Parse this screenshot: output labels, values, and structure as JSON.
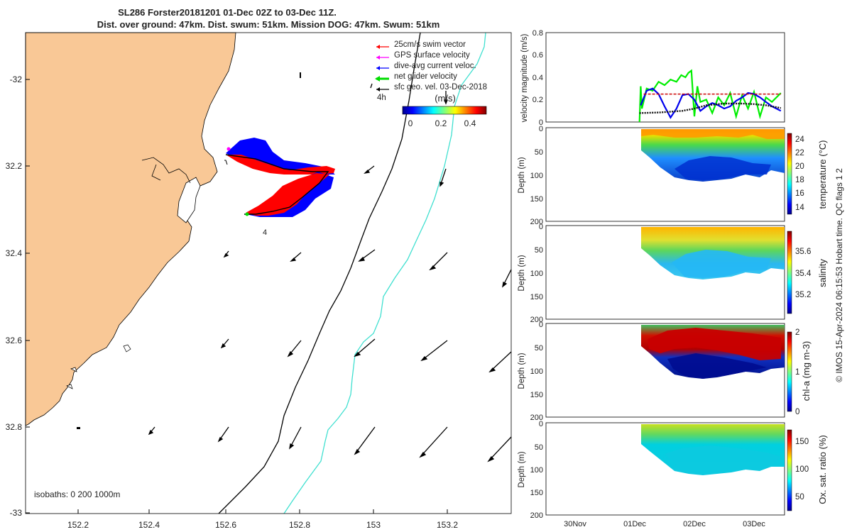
{
  "title": {
    "line1": "SL286 Forster20181201 01-Dec 02Z to 03-Dec 11Z.",
    "line2": "Dist. over ground: 47km. Dist. swum: 51km. Mission DOG: 47km. Swum: 51km"
  },
  "map": {
    "lon_ticks": [
      "152.2",
      "152.4",
      "152.6",
      "152.8",
      "153",
      "153.2"
    ],
    "lat_ticks": [
      "-32",
      "32.2",
      "32.4",
      "32.6",
      "32.8",
      "-33"
    ],
    "legend": [
      {
        "label": "25cm/s swim vector",
        "color": "#ff0000"
      },
      {
        "label": "GPS surface velocity",
        "color": "#ff00ff"
      },
      {
        "label": "dive-avg current veloc.",
        "color": "#0000ff"
      },
      {
        "label": "net glider velocity",
        "color": "#00dd00"
      },
      {
        "label": "sfc geo. vel. 03-Dec-2018",
        "color": "#000000"
      }
    ],
    "label_4h": "4h",
    "colorbar_unit": "(m/s)",
    "colorbar_ticks": [
      "0",
      "0.2",
      "0.4"
    ],
    "isobath_label": "isobaths: 0   200  1000m",
    "track_label": "4",
    "land_color": "#f9c896",
    "isobath_200_color": "#000000",
    "isobath_1000_color": "#40e0d0"
  },
  "chart_data": [
    {
      "type": "line",
      "ylabel": "velocity magnitude (m/s)",
      "ylim": [
        0,
        0.8
      ],
      "yticks": [
        "0",
        "0.2",
        "0.4",
        "0.6",
        "0.8"
      ],
      "x_ticks": [
        "30Nov",
        "01Dec",
        "02Dec",
        "03Dec"
      ],
      "series": [
        {
          "color": "#00ee00",
          "x": [
            1.08,
            1.1,
            1.12,
            1.2,
            1.3,
            1.4,
            1.5,
            1.6,
            1.7,
            1.78,
            1.85,
            1.9,
            1.95,
            2.0,
            2.05,
            2.1,
            2.2,
            2.3,
            2.4,
            2.5,
            2.6,
            2.7,
            2.8,
            2.9,
            3.0,
            3.1,
            3.2,
            3.3,
            3.45
          ],
          "y": [
            0.0,
            0.32,
            0.12,
            0.3,
            0.28,
            0.36,
            0.33,
            0.38,
            0.36,
            0.42,
            0.4,
            0.44,
            0.46,
            0.05,
            0.32,
            0.18,
            0.2,
            0.08,
            0.22,
            0.15,
            0.26,
            0.05,
            0.24,
            0.12,
            0.27,
            0.05,
            0.22,
            0.18,
            0.26
          ]
        },
        {
          "color": "#0000ee",
          "x": [
            1.1,
            1.2,
            1.3,
            1.4,
            1.5,
            1.6,
            1.7,
            1.8,
            1.9,
            2.0,
            2.1,
            2.2,
            2.3,
            2.4,
            2.5,
            2.6,
            2.7,
            2.8,
            2.9,
            3.0,
            3.1,
            3.2,
            3.3,
            3.45
          ],
          "y": [
            0.15,
            0.28,
            0.3,
            0.25,
            0.14,
            0.04,
            0.12,
            0.24,
            0.25,
            0.2,
            0.1,
            0.14,
            0.17,
            0.15,
            0.12,
            0.14,
            0.19,
            0.22,
            0.26,
            0.25,
            0.22,
            0.18,
            0.14,
            0.1
          ]
        },
        {
          "color": "#cc0000",
          "dashed": true,
          "x": [
            1.15,
            3.45
          ],
          "y": [
            0.25,
            0.25
          ]
        },
        {
          "color": "#111111",
          "dotted": true,
          "x": [
            1.08,
            1.4,
            1.8,
            2.0,
            2.2,
            2.5,
            2.8,
            3.0,
            3.2,
            3.45
          ],
          "y": [
            0.08,
            0.085,
            0.1,
            0.12,
            0.15,
            0.165,
            0.165,
            0.16,
            0.15,
            0.125
          ]
        }
      ]
    },
    {
      "type": "heatmap",
      "ylabel": "Depth (m)",
      "yticks": [
        "0",
        "50",
        "100",
        "150",
        "200"
      ],
      "cbar_label": "temperature (°C)",
      "cbar_ticks": [
        "24",
        "22",
        "20",
        "18",
        "16",
        "14"
      ]
    },
    {
      "type": "heatmap",
      "ylabel": "Depth (m)",
      "yticks": [
        "0",
        "50",
        "100",
        "150",
        "200"
      ],
      "cbar_label": "salinity",
      "cbar_ticks": [
        "35.6",
        "35.4",
        "35.2"
      ]
    },
    {
      "type": "heatmap",
      "ylabel": "Depth (m)",
      "yticks": [
        "0",
        "50",
        "100",
        "150",
        "200"
      ],
      "cbar_label": "chl-a (mg m-3)",
      "cbar_ticks": [
        "2",
        "1",
        "0"
      ]
    },
    {
      "type": "heatmap",
      "ylabel": "Depth (m)",
      "yticks": [
        "0",
        "50",
        "100",
        "150",
        "200"
      ],
      "cbar_label": "Ox. sat. ratio (%)",
      "cbar_ticks": [
        "150",
        "100",
        "50"
      ],
      "x_ticks": [
        "30Nov",
        "01Dec",
        "02Dec",
        "03Dec"
      ]
    }
  ],
  "footer": "© IMOS 15-Apr-2024 06:15:53 Hobart time. QC flags 1  2"
}
